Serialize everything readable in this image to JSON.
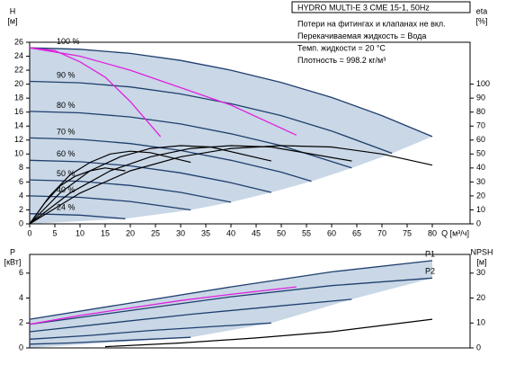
{
  "chart_data": [
    {
      "type": "line",
      "title": "HYDRO MULTI-E 3 CME 15-1, 50Hz",
      "annotations": [
        "Потери на фитингах и клапанах не вкл.",
        "Перекачиваемая жидкость = Вода",
        "Темп. жидкости = 20 °C",
        "Плотность = 998.2 кг/м³"
      ],
      "ylabel": "H",
      "yunit": "[м]",
      "y2label": "eta",
      "y2unit": "[%]",
      "xlabel": "Q [м³/ч]",
      "xlim": [
        0,
        87.5
      ],
      "xticks": [
        0,
        5,
        10,
        15,
        20,
        25,
        30,
        35,
        40,
        45,
        50,
        55,
        60,
        65,
        70,
        75,
        80
      ],
      "ylim": [
        0,
        26
      ],
      "yticks": [
        0,
        2,
        4,
        6,
        8,
        10,
        12,
        14,
        16,
        18,
        20,
        22,
        24,
        26
      ],
      "y2lim": [
        0,
        130
      ],
      "y2ticks": [
        0,
        10,
        20,
        30,
        40,
        50,
        60,
        70,
        80,
        90,
        100
      ],
      "series": [
        {
          "name": "100 %",
          "color": "#1f3f6e",
          "x": [
            0,
            10,
            20,
            30,
            40,
            50,
            60,
            70,
            80
          ],
          "values": [
            25.2,
            25.0,
            24.4,
            23.4,
            22.0,
            20.25,
            18.1,
            15.5,
            12.5
          ]
        },
        {
          "name": "90 %",
          "color": "#1f3f6e",
          "x": [
            0,
            10,
            20,
            30,
            40,
            50,
            60,
            72
          ],
          "values": [
            20.4,
            20.2,
            19.6,
            18.6,
            17.2,
            15.5,
            13.3,
            10.1
          ]
        },
        {
          "name": "80 %",
          "color": "#1f3f6e",
          "x": [
            0,
            10,
            20,
            30,
            40,
            50,
            64
          ],
          "values": [
            16.1,
            15.9,
            15.3,
            14.3,
            12.9,
            11.2,
            8.0
          ]
        },
        {
          "name": "70 %",
          "color": "#1f3f6e",
          "x": [
            0,
            10,
            20,
            30,
            40,
            50,
            56
          ],
          "values": [
            12.3,
            12.1,
            11.5,
            10.5,
            9.1,
            7.4,
            6.1
          ]
        },
        {
          "name": "60 %",
          "color": "#1f3f6e",
          "x": [
            0,
            10,
            20,
            30,
            40,
            48
          ],
          "values": [
            9.1,
            8.9,
            8.3,
            7.3,
            5.9,
            4.5
          ]
        },
        {
          "name": "50 %",
          "color": "#1f3f6e",
          "x": [
            0,
            10,
            20,
            30,
            40
          ],
          "values": [
            6.3,
            6.1,
            5.5,
            4.5,
            3.1
          ]
        },
        {
          "name": "40 %",
          "color": "#1f3f6e",
          "x": [
            0,
            10,
            20,
            32
          ],
          "values": [
            4.0,
            3.8,
            3.2,
            2.0
          ]
        },
        {
          "name": "24 %",
          "color": "#1f3f6e",
          "x": [
            0,
            10,
            19
          ],
          "values": [
            1.45,
            1.25,
            0.74
          ]
        },
        {
          "color": "#e020e0",
          "x": [
            0,
            5,
            10,
            15,
            20,
            26
          ],
          "values": [
            25.2,
            24.8,
            23.2,
            21.0,
            17.5,
            12.5
          ]
        },
        {
          "color": "#e020e0",
          "x": [
            0,
            10,
            20,
            30,
            40,
            53
          ],
          "values": [
            25.2,
            24.0,
            22.0,
            19.5,
            17.0,
            12.7
          ]
        },
        {
          "color": "#000000",
          "axis": "y2",
          "x": [
            0,
            10,
            20,
            30,
            40,
            50,
            60,
            70,
            80
          ],
          "values": [
            0,
            22,
            38,
            48,
            54,
            56,
            55,
            50,
            42
          ]
        },
        {
          "color": "#000000",
          "axis": "y2",
          "x": [
            0,
            8,
            16,
            24,
            32,
            40,
            48,
            64
          ],
          "values": [
            0,
            22,
            38,
            48,
            54,
            56,
            55,
            45
          ]
        },
        {
          "color": "#000000",
          "axis": "y2",
          "x": [
            0,
            6,
            12,
            18,
            24,
            30,
            36,
            48
          ],
          "values": [
            0,
            22,
            38,
            48,
            54,
            56,
            55,
            45
          ]
        },
        {
          "color": "#000000",
          "axis": "y2",
          "x": [
            0,
            4,
            8,
            12,
            16,
            20,
            24,
            32
          ],
          "values": [
            0,
            20,
            35,
            44,
            50,
            52,
            51,
            44
          ]
        },
        {
          "color": "#000000",
          "axis": "y2",
          "x": [
            0,
            3,
            6,
            9,
            12,
            15,
            19
          ],
          "values": [
            0,
            15,
            27,
            34,
            38,
            40,
            38
          ]
        }
      ]
    },
    {
      "type": "line",
      "ylabel": "P",
      "yunit": "[кВт]",
      "y2label": "NPSH",
      "y2unit": "[м]",
      "xlim": [
        0,
        87.5
      ],
      "ylim": [
        0,
        7.5
      ],
      "yticks": [
        0,
        2,
        4,
        6
      ],
      "y2lim": [
        0,
        37.5
      ],
      "y2ticks": [
        0,
        10,
        20,
        30
      ],
      "series": [
        {
          "name": "P1",
          "color": "#1f3f6e",
          "x": [
            0,
            20,
            40,
            60,
            80
          ],
          "values": [
            2.3,
            3.6,
            4.9,
            6.1,
            7.0
          ]
        },
        {
          "name": "P2",
          "color": "#1f3f6e",
          "x": [
            0,
            20,
            40,
            60,
            80
          ],
          "values": [
            1.9,
            3.0,
            4.1,
            5.0,
            5.6
          ]
        },
        {
          "color": "#1f3f6e",
          "x": [
            0,
            16,
            32,
            48,
            64
          ],
          "values": [
            1.3,
            2.0,
            2.7,
            3.3,
            3.9
          ]
        },
        {
          "color": "#1f3f6e",
          "x": [
            0,
            12,
            24,
            36,
            48
          ],
          "values": [
            0.7,
            1.0,
            1.4,
            1.7,
            2.0
          ]
        },
        {
          "color": "#1f3f6e",
          "x": [
            0,
            8,
            16,
            24,
            32
          ],
          "values": [
            0.3,
            0.4,
            0.55,
            0.7,
            0.85
          ]
        },
        {
          "color": "#e020e0",
          "x": [
            0,
            10,
            20,
            30,
            40,
            53
          ],
          "values": [
            1.9,
            2.6,
            3.2,
            3.8,
            4.3,
            4.9
          ]
        },
        {
          "color": "#000000",
          "axis": "y2",
          "x": [
            15,
            30,
            45,
            60,
            80
          ],
          "values": [
            0.5,
            2,
            4,
            6.5,
            11.5
          ]
        }
      ]
    }
  ]
}
